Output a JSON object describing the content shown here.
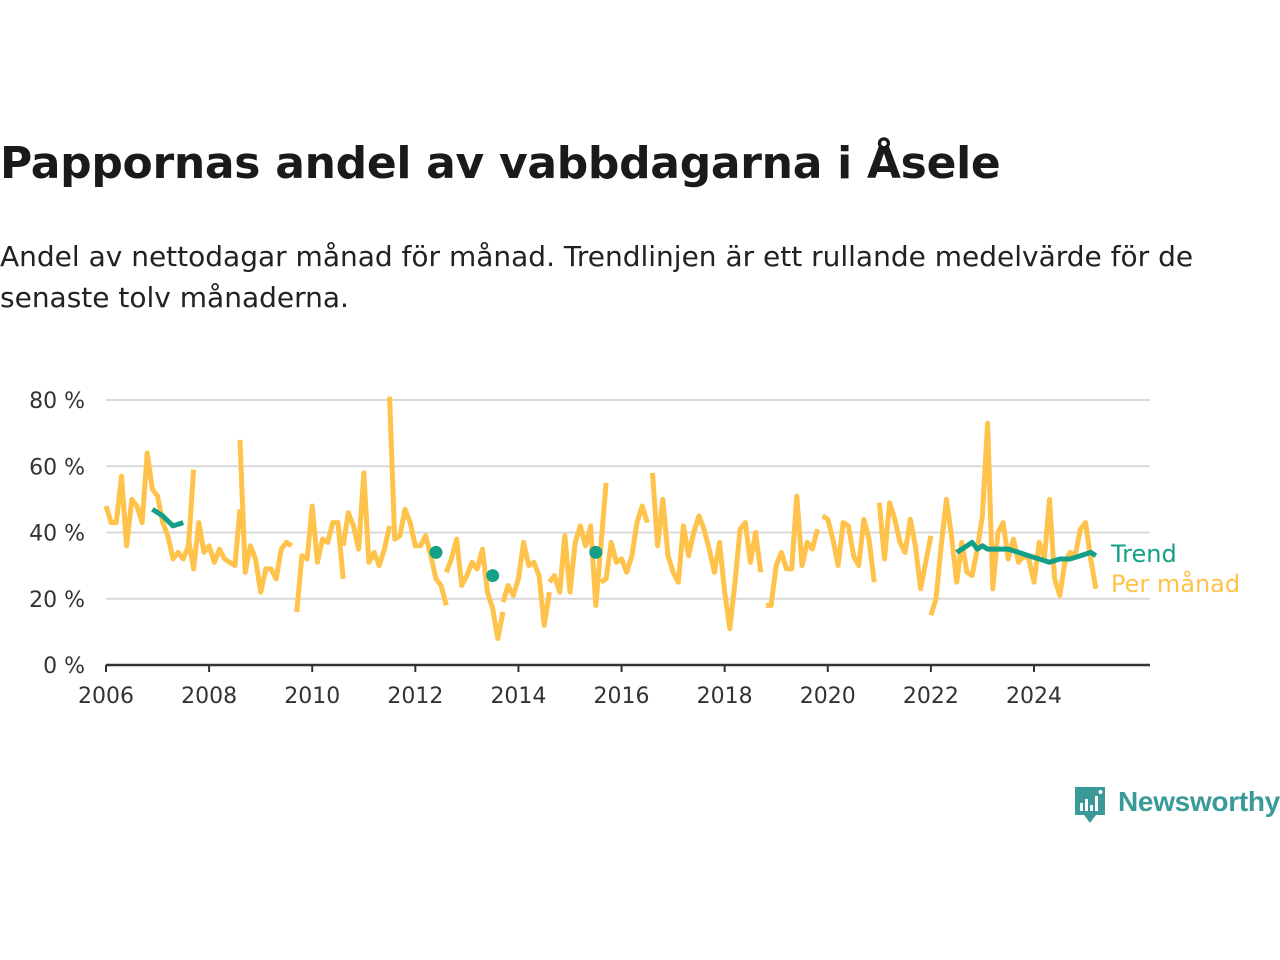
{
  "title": "Pappornas andel av vabbdagarna i Åsele",
  "subtitle": "Andel av nettodagar månad för månad. Trendlinjen är ett rullande medelvärde för de senaste tolv månaderna.",
  "brand": {
    "name": "Newsworthy",
    "color": "#3a9a9a",
    "logo_icon": "chart-bubble-icon"
  },
  "colors": {
    "monthly": "#ffc24b",
    "trend": "#14a088",
    "grid": "#d9d9d9",
    "axis": "#333333"
  },
  "chart_data": {
    "type": "line",
    "ylim": [
      0,
      80
    ],
    "yticks": [
      0,
      20,
      40,
      60,
      80
    ],
    "ytick_labels": [
      "0 %",
      "20 %",
      "40 %",
      "60 %",
      "80 %"
    ],
    "xlim": [
      2006,
      2026.25
    ],
    "xticks": [
      2006,
      2008,
      2010,
      2012,
      2014,
      2016,
      2018,
      2020,
      2022,
      2024
    ],
    "xtick_labels": [
      "2006",
      "2008",
      "2010",
      "2012",
      "2014",
      "2016",
      "2018",
      "2020",
      "2022",
      "2024"
    ],
    "grid": true,
    "legend_position": "right",
    "series": [
      {
        "name": "Per månad",
        "color": "#ffc24b",
        "values": [
          [
            [
              2006.0,
              48
            ],
            [
              2006.1,
              43
            ],
            [
              2006.2,
              43
            ],
            [
              2006.3,
              57
            ],
            [
              2006.4,
              36
            ],
            [
              2006.5,
              50
            ],
            [
              2006.6,
              48
            ],
            [
              2006.7,
              43
            ],
            [
              2006.8,
              64
            ],
            [
              2006.9,
              53
            ],
            [
              2007.0,
              51
            ],
            [
              2007.1,
              43
            ],
            [
              2007.2,
              39
            ],
            [
              2007.3,
              32
            ],
            [
              2007.4,
              34
            ],
            [
              2007.5,
              32
            ],
            [
              2007.6,
              36
            ],
            [
              2007.7,
              59
            ]
          ],
          [
            [
              2007.6,
              38
            ],
            [
              2007.7,
              29
            ],
            [
              2007.8,
              43
            ],
            [
              2007.9,
              34
            ],
            [
              2008.0,
              36
            ],
            [
              2008.1,
              31
            ],
            [
              2008.2,
              35
            ],
            [
              2008.3,
              32
            ],
            [
              2008.4,
              31
            ],
            [
              2008.5,
              30
            ],
            [
              2008.6,
              47
            ]
          ],
          [
            [
              2008.6,
              68
            ],
            [
              2008.7,
              28
            ],
            [
              2008.8,
              36
            ],
            [
              2008.9,
              32
            ],
            [
              2009.0,
              22
            ],
            [
              2009.1,
              29
            ],
            [
              2009.2,
              29
            ],
            [
              2009.3,
              26
            ],
            [
              2009.4,
              35
            ],
            [
              2009.5,
              37
            ],
            [
              2009.6,
              36
            ]
          ],
          [
            [
              2009.7,
              16
            ],
            [
              2009.8,
              33
            ],
            [
              2009.9,
              32
            ],
            [
              2010.0,
              48
            ],
            [
              2010.1,
              31
            ],
            [
              2010.2,
              38
            ],
            [
              2010.3,
              37
            ],
            [
              2010.4,
              43
            ],
            [
              2010.5,
              43
            ],
            [
              2010.6,
              26
            ]
          ],
          [
            [
              2010.6,
              36
            ],
            [
              2010.7,
              46
            ],
            [
              2010.8,
              42
            ],
            [
              2010.9,
              35
            ],
            [
              2011.0,
              58
            ],
            [
              2011.1,
              31
            ],
            [
              2011.2,
              34
            ],
            [
              2011.3,
              30
            ],
            [
              2011.4,
              35
            ],
            [
              2011.5,
              42
            ]
          ],
          [
            [
              2011.5,
              81
            ],
            [
              2011.6,
              38
            ],
            [
              2011.7,
              39
            ],
            [
              2011.8,
              47
            ],
            [
              2011.9,
              43
            ],
            [
              2012.0,
              36
            ],
            [
              2012.1,
              36
            ],
            [
              2012.2,
              39
            ],
            [
              2012.3,
              33
            ],
            [
              2012.4,
              26
            ],
            [
              2012.5,
              24
            ],
            [
              2012.6,
              18
            ]
          ],
          [
            [
              2012.6,
              28
            ],
            [
              2012.7,
              32
            ],
            [
              2012.8,
              38
            ],
            [
              2012.9,
              24
            ],
            [
              2013.0,
              27
            ],
            [
              2013.1,
              31
            ],
            [
              2013.2,
              29
            ],
            [
              2013.3,
              35
            ],
            [
              2013.4,
              22
            ],
            [
              2013.5,
              17
            ],
            [
              2013.6,
              8
            ],
            [
              2013.7,
              16
            ]
          ],
          [
            [
              2013.7,
              19
            ],
            [
              2013.8,
              24
            ],
            [
              2013.9,
              21
            ],
            [
              2014.0,
              26
            ],
            [
              2014.1,
              37
            ],
            [
              2014.2,
              30
            ],
            [
              2014.3,
              31
            ],
            [
              2014.4,
              27
            ],
            [
              2014.5,
              12
            ],
            [
              2014.6,
              22
            ]
          ],
          [
            [
              2014.6,
              25
            ],
            [
              2014.7,
              27
            ],
            [
              2014.8,
              22
            ],
            [
              2014.9,
              39
            ],
            [
              2015.0,
              22
            ],
            [
              2015.1,
              37
            ],
            [
              2015.2,
              42
            ],
            [
              2015.3,
              36
            ],
            [
              2015.4,
              42
            ],
            [
              2015.5,
              18
            ],
            [
              2015.6,
              36
            ],
            [
              2015.7,
              55
            ]
          ],
          [
            [
              2015.6,
              25
            ],
            [
              2015.7,
              26
            ],
            [
              2015.8,
              37
            ],
            [
              2015.9,
              31
            ],
            [
              2016.0,
              32
            ],
            [
              2016.1,
              28
            ],
            [
              2016.2,
              33
            ],
            [
              2016.3,
              43
            ],
            [
              2016.4,
              48
            ],
            [
              2016.5,
              43
            ]
          ],
          [
            [
              2016.6,
              58
            ],
            [
              2016.7,
              36
            ],
            [
              2016.8,
              50
            ],
            [
              2016.9,
              33
            ],
            [
              2017.0,
              28
            ],
            [
              2017.1,
              25
            ],
            [
              2017.2,
              42
            ],
            [
              2017.3,
              33
            ],
            [
              2017.4,
              40
            ],
            [
              2017.5,
              45
            ],
            [
              2017.6,
              41
            ],
            [
              2017.7,
              35
            ]
          ],
          [
            [
              2017.7,
              35
            ],
            [
              2017.8,
              28
            ],
            [
              2017.9,
              37
            ],
            [
              2018.0,
              22
            ],
            [
              2018.1,
              11
            ],
            [
              2018.2,
              25
            ],
            [
              2018.3,
              41
            ],
            [
              2018.4,
              43
            ],
            [
              2018.5,
              31
            ],
            [
              2018.6,
              40
            ],
            [
              2018.7,
              28
            ]
          ],
          [
            [
              2018.8,
              18
            ],
            [
              2018.9,
              18
            ],
            [
              2019.0,
              30
            ],
            [
              2019.1,
              34
            ],
            [
              2019.2,
              29
            ],
            [
              2019.3,
              29
            ],
            [
              2019.4,
              51
            ],
            [
              2019.5,
              30
            ],
            [
              2019.6,
              37
            ],
            [
              2019.7,
              35
            ],
            [
              2019.8,
              41
            ]
          ],
          [
            [
              2019.9,
              45
            ],
            [
              2020.0,
              44
            ],
            [
              2020.1,
              38
            ],
            [
              2020.2,
              30
            ],
            [
              2020.3,
              43
            ],
            [
              2020.4,
              42
            ],
            [
              2020.5,
              33
            ],
            [
              2020.6,
              30
            ],
            [
              2020.7,
              44
            ],
            [
              2020.8,
              38
            ],
            [
              2020.9,
              25
            ]
          ],
          [
            [
              2021.0,
              49
            ],
            [
              2021.1,
              32
            ],
            [
              2021.2,
              49
            ],
            [
              2021.3,
              44
            ],
            [
              2021.4,
              37
            ],
            [
              2021.5,
              34
            ],
            [
              2021.6,
              44
            ],
            [
              2021.7,
              36
            ],
            [
              2021.8,
              23
            ],
            [
              2021.9,
              31
            ],
            [
              2022.0,
              39
            ]
          ],
          [
            [
              2022.0,
              15
            ],
            [
              2022.1,
              20
            ],
            [
              2022.2,
              36
            ],
            [
              2022.3,
              50
            ],
            [
              2022.4,
              39
            ],
            [
              2022.5,
              25
            ],
            [
              2022.6,
              37
            ],
            [
              2022.7,
              28
            ],
            [
              2022.8,
              27
            ],
            [
              2022.9,
              35
            ],
            [
              2023.0,
              45
            ],
            [
              2023.1,
              73
            ],
            [
              2023.2,
              23
            ],
            [
              2023.3,
              40
            ],
            [
              2023.4,
              43
            ],
            [
              2023.5,
              32
            ],
            [
              2023.6,
              38
            ],
            [
              2023.7,
              31
            ],
            [
              2023.8,
              33
            ],
            [
              2023.9,
              32
            ],
            [
              2024.0,
              25
            ],
            [
              2024.1,
              37
            ],
            [
              2024.2,
              32
            ],
            [
              2024.3,
              50
            ],
            [
              2024.4,
              26
            ],
            [
              2024.5,
              21
            ],
            [
              2024.6,
              31
            ],
            [
              2024.7,
              34
            ],
            [
              2024.8,
              33
            ],
            [
              2024.9,
              41
            ],
            [
              2025.0,
              43
            ],
            [
              2025.1,
              32
            ],
            [
              2025.2,
              23
            ]
          ]
        ],
        "dots": []
      },
      {
        "name": "Trend",
        "color": "#14a088",
        "values": [
          [
            [
              2006.9,
              47
            ],
            [
              2007.1,
              45
            ],
            [
              2007.3,
              42
            ],
            [
              2007.5,
              43
            ]
          ],
          [
            [
              2022.5,
              34
            ],
            [
              2022.6,
              35
            ],
            [
              2022.7,
              36
            ],
            [
              2022.8,
              37
            ],
            [
              2022.9,
              35
            ],
            [
              2023.0,
              36
            ],
            [
              2023.1,
              35
            ],
            [
              2023.3,
              35
            ],
            [
              2023.5,
              35
            ],
            [
              2023.7,
              34
            ],
            [
              2023.9,
              33
            ],
            [
              2024.1,
              32
            ],
            [
              2024.3,
              31
            ],
            [
              2024.5,
              32
            ],
            [
              2024.7,
              32
            ],
            [
              2024.9,
              33
            ],
            [
              2025.1,
              34
            ],
            [
              2025.2,
              33
            ]
          ]
        ],
        "dots": [
          [
            2012.4,
            34
          ],
          [
            2013.5,
            27
          ],
          [
            2015.5,
            34
          ]
        ]
      }
    ]
  }
}
